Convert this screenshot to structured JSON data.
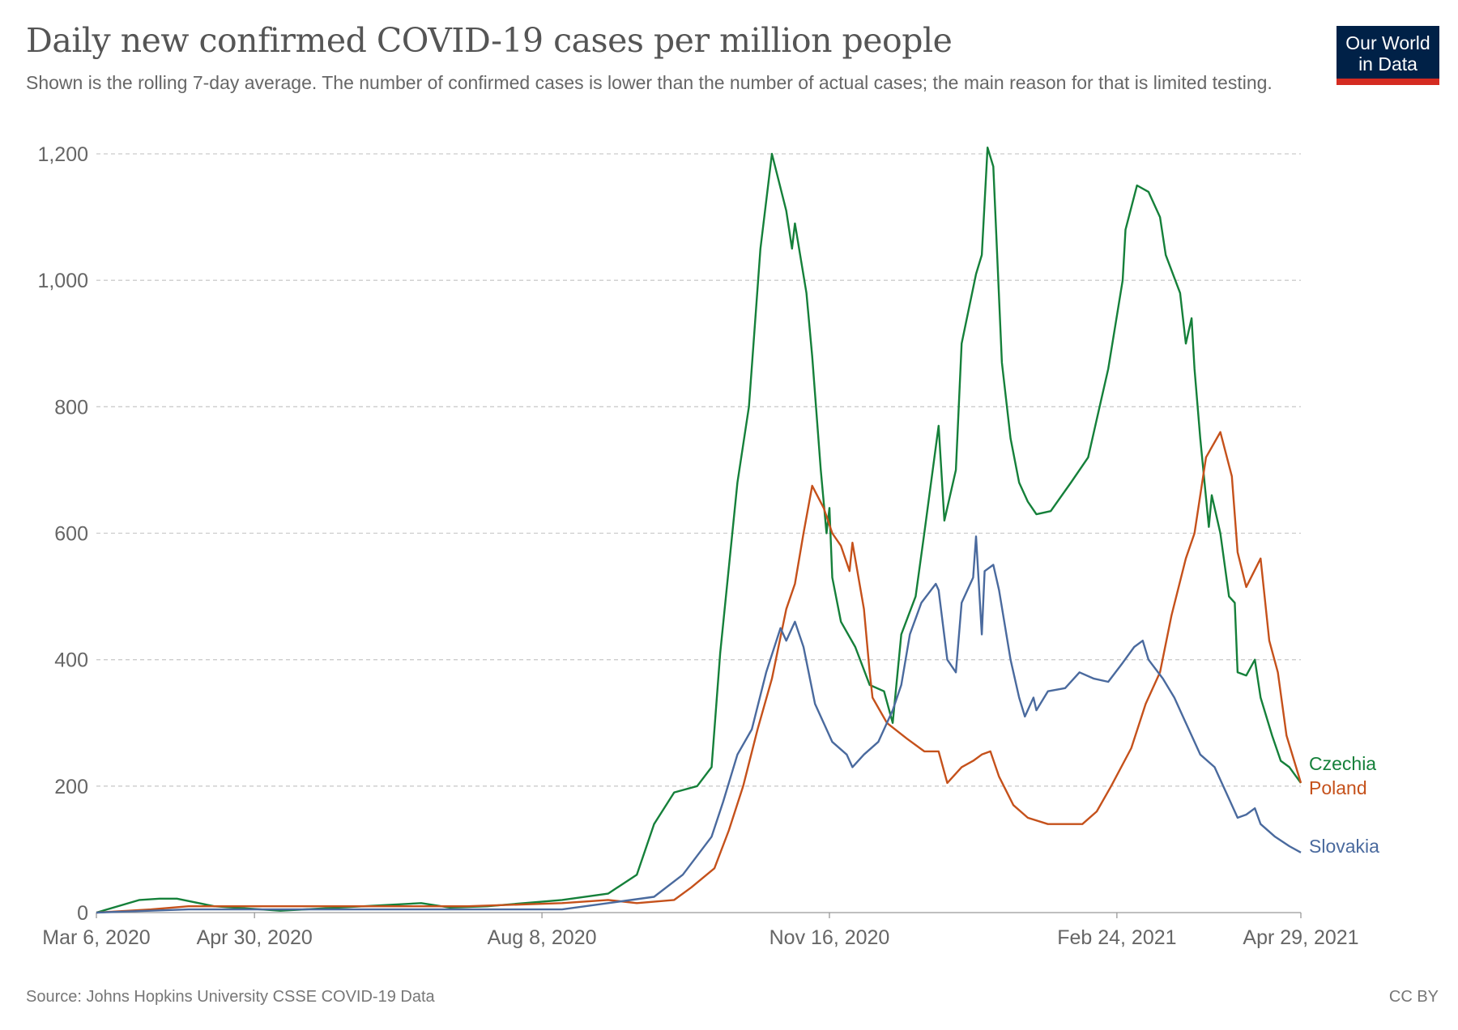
{
  "header": {
    "title": "Daily new confirmed COVID-19 cases per million people",
    "subtitle": "Shown is the rolling 7-day average. The number of confirmed cases is lower than the number of actual cases; the main reason for that is limited testing.",
    "logo_text": "Our World in Data"
  },
  "footer": {
    "source": "Source: Johns Hopkins University CSSE COVID-19 Data",
    "license": "CC BY"
  },
  "chart_data": {
    "type": "line",
    "title": "Daily new confirmed COVID-19 cases per million people",
    "xlabel": "",
    "ylabel": "",
    "xlim": [
      "2020-03-06",
      "2021-04-29"
    ],
    "ylim": [
      0,
      1200
    ],
    "grid": "horizontal dashed",
    "legend": "inline labels at right end of lines",
    "yticks": [
      0,
      200,
      400,
      600,
      800,
      1000,
      1200
    ],
    "ytick_labels": [
      "0",
      "200",
      "400",
      "600",
      "800",
      "1,000",
      "1,200"
    ],
    "xticks": [
      {
        "date": "2020-03-06",
        "label": "Mar 6, 2020"
      },
      {
        "date": "2020-04-30",
        "label": "Apr 30, 2020"
      },
      {
        "date": "2020-08-08",
        "label": "Aug 8, 2020"
      },
      {
        "date": "2020-11-16",
        "label": "Nov 16, 2020"
      },
      {
        "date": "2021-02-24",
        "label": "Feb 24, 2021"
      },
      {
        "date": "2021-04-29",
        "label": "Apr 29, 2021"
      }
    ],
    "series": [
      {
        "name": "Czechia",
        "color": "#15803a",
        "points": [
          [
            "2020-03-06",
            0
          ],
          [
            "2020-03-21",
            20
          ],
          [
            "2020-03-28",
            22
          ],
          [
            "2020-04-03",
            22
          ],
          [
            "2020-04-16",
            10
          ],
          [
            "2020-05-09",
            3
          ],
          [
            "2020-06-27",
            15
          ],
          [
            "2020-07-07",
            8
          ],
          [
            "2020-07-20",
            10
          ],
          [
            "2020-08-15",
            20
          ],
          [
            "2020-08-31",
            30
          ],
          [
            "2020-09-10",
            60
          ],
          [
            "2020-09-16",
            140
          ],
          [
            "2020-09-23",
            190
          ],
          [
            "2020-10-01",
            200
          ],
          [
            "2020-10-06",
            230
          ],
          [
            "2020-10-09",
            410
          ],
          [
            "2020-10-15",
            680
          ],
          [
            "2020-10-19",
            800
          ],
          [
            "2020-10-23",
            1050
          ],
          [
            "2020-10-27",
            1200
          ],
          [
            "2020-11-01",
            1110
          ],
          [
            "2020-11-03",
            1050
          ],
          [
            "2020-11-04",
            1090
          ],
          [
            "2020-11-08",
            980
          ],
          [
            "2020-11-10",
            880
          ],
          [
            "2020-11-13",
            700
          ],
          [
            "2020-11-15",
            600
          ],
          [
            "2020-11-16",
            640
          ],
          [
            "2020-11-17",
            530
          ],
          [
            "2020-11-20",
            460
          ],
          [
            "2020-11-25",
            420
          ],
          [
            "2020-11-30",
            360
          ],
          [
            "2020-12-05",
            350
          ],
          [
            "2020-12-08",
            300
          ],
          [
            "2020-12-11",
            440
          ],
          [
            "2020-12-16",
            500
          ],
          [
            "2020-12-19",
            600
          ],
          [
            "2020-12-24",
            770
          ],
          [
            "2020-12-26",
            620
          ],
          [
            "2020-12-30",
            700
          ],
          [
            "2021-01-01",
            900
          ],
          [
            "2021-01-06",
            1010
          ],
          [
            "2021-01-08",
            1040
          ],
          [
            "2021-01-10",
            1210
          ],
          [
            "2021-01-12",
            1180
          ],
          [
            "2021-01-15",
            870
          ],
          [
            "2021-01-18",
            750
          ],
          [
            "2021-01-21",
            680
          ],
          [
            "2021-01-24",
            650
          ],
          [
            "2021-01-27",
            630
          ],
          [
            "2021-02-01",
            635
          ],
          [
            "2021-02-08",
            680
          ],
          [
            "2021-02-14",
            720
          ],
          [
            "2021-02-17",
            780
          ],
          [
            "2021-02-21",
            860
          ],
          [
            "2021-02-26",
            1000
          ],
          [
            "2021-02-27",
            1080
          ],
          [
            "2021-03-03",
            1150
          ],
          [
            "2021-03-07",
            1140
          ],
          [
            "2021-03-11",
            1100
          ],
          [
            "2021-03-13",
            1040
          ],
          [
            "2021-03-18",
            980
          ],
          [
            "2021-03-20",
            900
          ],
          [
            "2021-03-22",
            940
          ],
          [
            "2021-03-23",
            860
          ],
          [
            "2021-03-25",
            750
          ],
          [
            "2021-03-28",
            610
          ],
          [
            "2021-03-29",
            660
          ],
          [
            "2021-04-01",
            600
          ],
          [
            "2021-04-04",
            500
          ],
          [
            "2021-04-06",
            490
          ],
          [
            "2021-04-07",
            380
          ],
          [
            "2021-04-10",
            375
          ],
          [
            "2021-04-13",
            400
          ],
          [
            "2021-04-15",
            340
          ],
          [
            "2021-04-19",
            280
          ],
          [
            "2021-04-22",
            240
          ],
          [
            "2021-04-25",
            230
          ],
          [
            "2021-04-29",
            205
          ]
        ]
      },
      {
        "name": "Poland",
        "color": "#c5511b",
        "points": [
          [
            "2020-03-06",
            0
          ],
          [
            "2020-03-25",
            5
          ],
          [
            "2020-04-07",
            10
          ],
          [
            "2020-07-13",
            10
          ],
          [
            "2020-08-15",
            15
          ],
          [
            "2020-08-31",
            20
          ],
          [
            "2020-09-10",
            15
          ],
          [
            "2020-09-23",
            20
          ],
          [
            "2020-09-29",
            40
          ],
          [
            "2020-10-07",
            70
          ],
          [
            "2020-10-12",
            130
          ],
          [
            "2020-10-17",
            200
          ],
          [
            "2020-10-22",
            290
          ],
          [
            "2020-10-27",
            370
          ],
          [
            "2020-11-01",
            480
          ],
          [
            "2020-11-04",
            520
          ],
          [
            "2020-11-07",
            600
          ],
          [
            "2020-11-10",
            675
          ],
          [
            "2020-11-14",
            640
          ],
          [
            "2020-11-17",
            600
          ],
          [
            "2020-11-20",
            580
          ],
          [
            "2020-11-23",
            540
          ],
          [
            "2020-11-24",
            585
          ],
          [
            "2020-11-28",
            480
          ],
          [
            "2020-11-30",
            380
          ],
          [
            "2020-12-01",
            340
          ],
          [
            "2020-12-06",
            300
          ],
          [
            "2020-12-13",
            275
          ],
          [
            "2020-12-19",
            255
          ],
          [
            "2020-12-24",
            255
          ],
          [
            "2020-12-27",
            205
          ],
          [
            "2021-01-01",
            230
          ],
          [
            "2021-01-05",
            240
          ],
          [
            "2021-01-08",
            250
          ],
          [
            "2021-01-11",
            255
          ],
          [
            "2021-01-14",
            215
          ],
          [
            "2021-01-19",
            170
          ],
          [
            "2021-01-24",
            150
          ],
          [
            "2021-01-31",
            140
          ],
          [
            "2021-02-06",
            140
          ],
          [
            "2021-02-12",
            140
          ],
          [
            "2021-02-17",
            160
          ],
          [
            "2021-02-22",
            200
          ],
          [
            "2021-03-01",
            260
          ],
          [
            "2021-03-06",
            330
          ],
          [
            "2021-03-11",
            380
          ],
          [
            "2021-03-15",
            470
          ],
          [
            "2021-03-20",
            560
          ],
          [
            "2021-03-23",
            600
          ],
          [
            "2021-03-27",
            720
          ],
          [
            "2021-04-01",
            760
          ],
          [
            "2021-04-05",
            690
          ],
          [
            "2021-04-07",
            570
          ],
          [
            "2021-04-10",
            515
          ],
          [
            "2021-04-15",
            560
          ],
          [
            "2021-04-18",
            430
          ],
          [
            "2021-04-21",
            380
          ],
          [
            "2021-04-24",
            280
          ],
          [
            "2021-04-29",
            205
          ]
        ]
      },
      {
        "name": "Slovakia",
        "color": "#4a6a9e",
        "points": [
          [
            "2020-03-06",
            0
          ],
          [
            "2020-04-07",
            5
          ],
          [
            "2020-08-15",
            5
          ],
          [
            "2020-08-31",
            15
          ],
          [
            "2020-09-16",
            25
          ],
          [
            "2020-09-26",
            60
          ],
          [
            "2020-10-06",
            120
          ],
          [
            "2020-10-10",
            175
          ],
          [
            "2020-10-15",
            250
          ],
          [
            "2020-10-20",
            290
          ],
          [
            "2020-10-25",
            380
          ],
          [
            "2020-10-30",
            450
          ],
          [
            "2020-11-01",
            430
          ],
          [
            "2020-11-04",
            460
          ],
          [
            "2020-11-07",
            420
          ],
          [
            "2020-11-11",
            330
          ],
          [
            "2020-11-17",
            270
          ],
          [
            "2020-11-22",
            250
          ],
          [
            "2020-11-24",
            230
          ],
          [
            "2020-11-28",
            250
          ],
          [
            "2020-12-03",
            270
          ],
          [
            "2020-12-08",
            320
          ],
          [
            "2020-12-11",
            360
          ],
          [
            "2020-12-14",
            440
          ],
          [
            "2020-12-18",
            490
          ],
          [
            "2020-12-23",
            520
          ],
          [
            "2020-12-24",
            510
          ],
          [
            "2020-12-27",
            400
          ],
          [
            "2020-12-30",
            380
          ],
          [
            "2021-01-01",
            490
          ],
          [
            "2021-01-05",
            530
          ],
          [
            "2021-01-06",
            595
          ],
          [
            "2021-01-08",
            440
          ],
          [
            "2021-01-09",
            540
          ],
          [
            "2021-01-12",
            550
          ],
          [
            "2021-01-14",
            510
          ],
          [
            "2021-01-18",
            400
          ],
          [
            "2021-01-21",
            340
          ],
          [
            "2021-01-23",
            310
          ],
          [
            "2021-01-26",
            340
          ],
          [
            "2021-01-27",
            320
          ],
          [
            "2021-01-31",
            350
          ],
          [
            "2021-02-06",
            355
          ],
          [
            "2021-02-11",
            380
          ],
          [
            "2021-02-16",
            370
          ],
          [
            "2021-02-21",
            365
          ],
          [
            "2021-02-26",
            395
          ],
          [
            "2021-03-02",
            420
          ],
          [
            "2021-03-05",
            430
          ],
          [
            "2021-03-07",
            400
          ],
          [
            "2021-03-12",
            370
          ],
          [
            "2021-03-16",
            340
          ],
          [
            "2021-03-20",
            300
          ],
          [
            "2021-03-25",
            250
          ],
          [
            "2021-03-30",
            230
          ],
          [
            "2021-04-04",
            180
          ],
          [
            "2021-04-07",
            150
          ],
          [
            "2021-04-10",
            155
          ],
          [
            "2021-04-13",
            165
          ],
          [
            "2021-04-15",
            140
          ],
          [
            "2021-04-20",
            120
          ],
          [
            "2021-04-25",
            105
          ],
          [
            "2021-04-29",
            95
          ]
        ]
      }
    ]
  }
}
